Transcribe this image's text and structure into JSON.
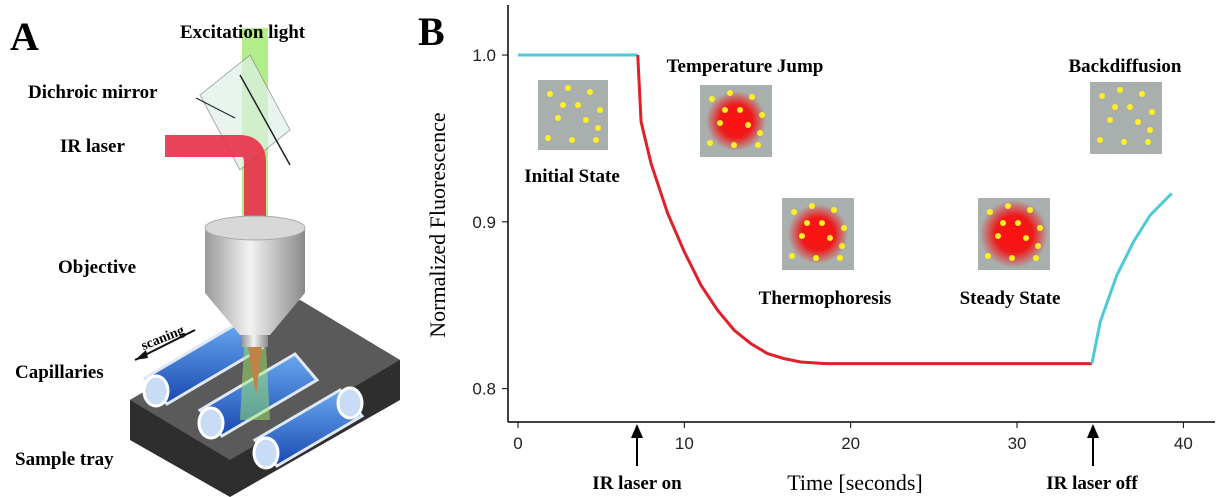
{
  "panel_a": {
    "panel_label": "A",
    "labels": [
      "Excitation light",
      "Dichroic mirror",
      "IR laser",
      "Objective",
      "scaning",
      "Capillaries",
      "Sample tray"
    ]
  },
  "chart_data": {
    "type": "line",
    "panel_label": "B",
    "x_label": "Time [seconds]",
    "y_label": "Normalized Fluorescence",
    "series": [
      {
        "color": "#4fc8d8",
        "x": [
          0,
          7.2
        ],
        "values": [
          1.0,
          1.0
        ]
      },
      {
        "color": "#e0202a",
        "x": [
          7.2,
          7.4,
          8,
          9,
          10,
          11,
          12,
          13,
          14,
          15,
          16,
          17,
          18.5,
          34.5
        ],
        "values": [
          1.0,
          0.96,
          0.935,
          0.905,
          0.882,
          0.862,
          0.847,
          0.835,
          0.827,
          0.821,
          0.818,
          0.816,
          0.815,
          0.815
        ]
      },
      {
        "color": "#4fc8d8",
        "x": [
          34.5,
          35,
          36,
          37,
          38,
          39.3
        ],
        "values": [
          0.815,
          0.84,
          0.868,
          0.888,
          0.904,
          0.917
        ]
      }
    ],
    "xlim": [
      -0.6,
      41.9
    ],
    "ylim": [
      0.78,
      1.03
    ],
    "xticks": [
      0,
      10,
      20,
      30,
      40
    ],
    "yticks": [
      0.8,
      0.9,
      {
        "value": 1,
        "label": "1.0"
      }
    ],
    "annotations": [
      "Initial State",
      "Temperature Jump",
      "Thermophoresis",
      "Steady State",
      "Backdiffusion",
      "IR laser on",
      "IR laser off"
    ]
  }
}
